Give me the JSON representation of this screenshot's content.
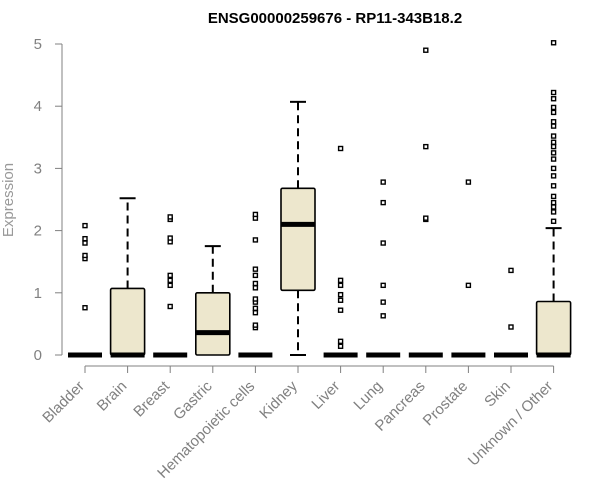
{
  "chart_data": {
    "type": "boxplot",
    "title": "ENSG00000259676 - RP11-343B18.2",
    "ylabel": "Expression",
    "xlabel": "",
    "ylim": [
      0,
      5
    ],
    "yticks": [
      0,
      1,
      2,
      3,
      4,
      5
    ],
    "box_fill": "#ede7cd",
    "categories": [
      "Bladder",
      "Brain",
      "Breast",
      "Gastric",
      "Hematopoietic cells",
      "Kidney",
      "Liver",
      "Lung",
      "Pancreas",
      "Prostate",
      "Skin",
      "Unknown / Other"
    ],
    "boxes": [
      {
        "category": "Bladder",
        "q1": 0,
        "median": 0,
        "q3": 0,
        "whisker_low": 0,
        "whisker_high": 0,
        "outliers": [
          0.76,
          1.55,
          1.6,
          1.8,
          1.87,
          2.08
        ]
      },
      {
        "category": "Brain",
        "q1": 0,
        "median": 0,
        "q3": 1.07,
        "whisker_low": 0,
        "whisker_high": 2.52,
        "outliers": []
      },
      {
        "category": "Breast",
        "q1": 0,
        "median": 0,
        "q3": 0,
        "whisker_low": 0,
        "whisker_high": 0,
        "outliers": [
          0.78,
          1.12,
          1.2,
          1.28,
          1.82,
          1.88,
          2.18,
          2.22
        ]
      },
      {
        "category": "Gastric",
        "q1": 0,
        "median": 0.36,
        "q3": 1.0,
        "whisker_low": 0,
        "whisker_high": 1.75,
        "outliers": []
      },
      {
        "category": "Hematopoietic cells",
        "q1": 0,
        "median": 0,
        "q3": 0,
        "whisker_low": 0,
        "whisker_high": 0,
        "outliers": [
          0.44,
          0.48,
          0.68,
          0.75,
          0.85,
          0.9,
          1.08,
          1.15,
          1.28,
          1.38,
          1.85,
          2.2,
          2.26
        ]
      },
      {
        "category": "Kidney",
        "q1": 1.04,
        "median": 2.1,
        "q3": 2.68,
        "whisker_low": 0,
        "whisker_high": 4.07,
        "outliers": []
      },
      {
        "category": "Liver",
        "q1": 0,
        "median": 0,
        "q3": 0,
        "whisker_low": 0,
        "whisker_high": 0,
        "outliers": [
          0.14,
          0.22,
          0.72,
          0.88,
          0.97,
          1.12,
          1.2,
          3.32
        ]
      },
      {
        "category": "Lung",
        "q1": 0,
        "median": 0,
        "q3": 0,
        "whisker_low": 0,
        "whisker_high": 0,
        "outliers": [
          0.63,
          0.85,
          1.12,
          1.8,
          2.45,
          2.78
        ]
      },
      {
        "category": "Pancreas",
        "q1": 0,
        "median": 0,
        "q3": 0,
        "whisker_low": 0,
        "whisker_high": 0,
        "outliers": [
          2.18,
          2.2,
          3.35,
          4.9
        ]
      },
      {
        "category": "Prostate",
        "q1": 0,
        "median": 0,
        "q3": 0,
        "whisker_low": 0,
        "whisker_high": 0,
        "outliers": [
          1.12,
          2.78
        ]
      },
      {
        "category": "Skin",
        "q1": 0,
        "median": 0,
        "q3": 0,
        "whisker_low": 0,
        "whisker_high": 0,
        "outliers": [
          0.45,
          1.36
        ]
      },
      {
        "category": "Unknown / Other",
        "q1": 0,
        "median": 0,
        "q3": 0.86,
        "whisker_low": 0,
        "whisker_high": 2.04,
        "outliers": [
          2.15,
          2.3,
          2.38,
          2.45,
          2.55,
          2.72,
          2.88,
          3.0,
          3.15,
          3.25,
          3.35,
          3.42,
          3.52,
          3.68,
          3.75,
          3.9,
          3.98,
          4.12,
          4.22,
          5.02
        ]
      }
    ]
  }
}
